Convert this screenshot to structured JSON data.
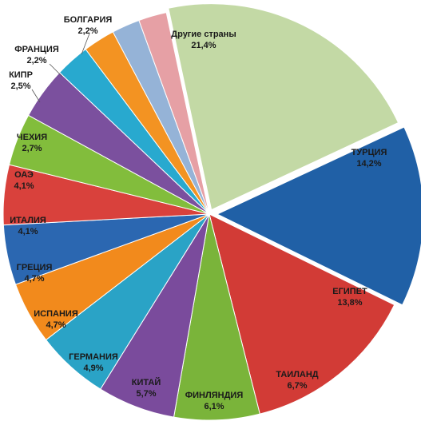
{
  "chart_data": {
    "type": "pie",
    "title": "",
    "slices": [
      {
        "name": "ТУРЦИЯ",
        "value_label": "14,2%",
        "value": 14.2,
        "color": "#2060a6"
      },
      {
        "name": "ЕГИПЕТ",
        "value_label": "13,8%",
        "value": 13.8,
        "color": "#d23b36"
      },
      {
        "name": "ТАИЛАНД",
        "value_label": "6,7%",
        "value": 6.7,
        "color": "#7ab43a"
      },
      {
        "name": "ФИНЛЯНДИЯ",
        "value_label": "6,1%",
        "value": 6.1,
        "color": "#7a4b9c"
      },
      {
        "name": "КИТАЙ",
        "value_label": "5,7%",
        "value": 5.7,
        "color": "#2aa3c6"
      },
      {
        "name": "ГЕРМАНИЯ",
        "value_label": "4,9%",
        "value": 4.9,
        "color": "#f28a1c"
      },
      {
        "name": "ИСПАНИЯ",
        "value_label": "4,7%",
        "value": 4.7,
        "color": "#2b67b1"
      },
      {
        "name": "ГРЕЦИЯ",
        "value_label": "4,7%",
        "value": 4.7,
        "color": "#d9413c"
      },
      {
        "name": "ИТАЛИЯ",
        "value_label": "4,1%",
        "value": 4.1,
        "color": "#82bd3c"
      },
      {
        "name": "ОАЭ",
        "value_label": "4,1%",
        "value": 4.1,
        "color": "#7b509e"
      },
      {
        "name": "ЧЕХИЯ",
        "value_label": "2,7%",
        "value": 2.7,
        "color": "#28a9cf"
      },
      {
        "name": "КИПР",
        "value_label": "2,5%",
        "value": 2.5,
        "color": "#f39322"
      },
      {
        "name": "ФРАНЦИЯ",
        "value_label": "2,2%",
        "value": 2.2,
        "color": "#95b3d7"
      },
      {
        "name": "БОЛГАРИЯ",
        "value_label": "2,2%",
        "value": 2.2,
        "color": "#e6a0a5"
      },
      {
        "name": "Другие страны",
        "value_label": "21,4%",
        "value": 21.4,
        "color": "#c3d9a5"
      }
    ],
    "start_angle_deg": -25,
    "exploded": [
      "ТУРЦИЯ",
      "Другие страны"
    ],
    "legend": "none"
  }
}
